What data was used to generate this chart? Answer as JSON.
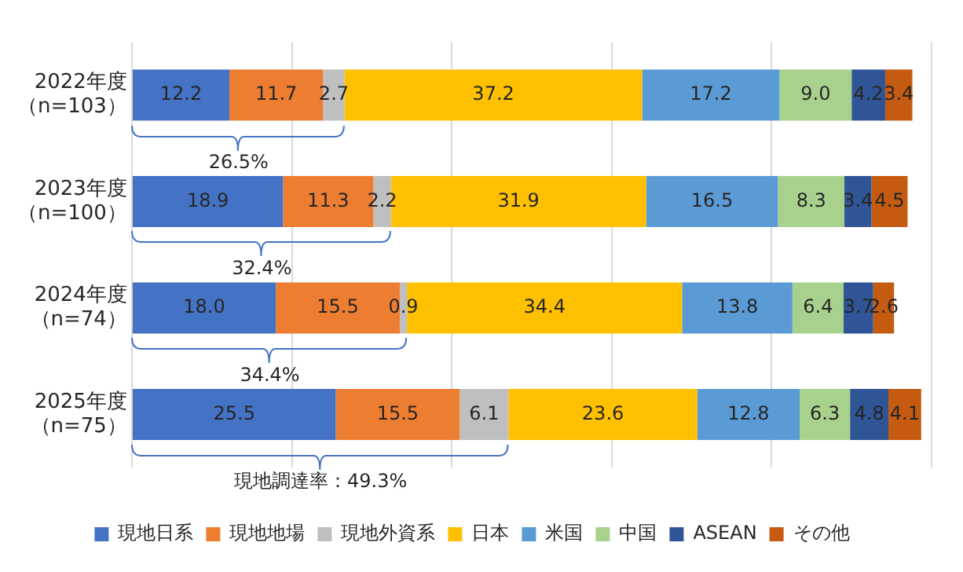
{
  "chart_data": {
    "type": "bar",
    "orientation": "horizontal",
    "stacked": true,
    "categories": [
      "2022年度（n=103）",
      "2023年度（n=100）",
      "2024年度（n=74）",
      "2025年度（n=75）"
    ],
    "series": [
      {
        "name": "現地日系",
        "color": "#4472c4",
        "values": [
          12.2,
          18.9,
          18.0,
          25.5
        ],
        "value_labels": [
          "12.2",
          "18.9",
          "18.0",
          "25.5"
        ]
      },
      {
        "name": "現地地場",
        "color": "#ed7d31",
        "values": [
          11.7,
          11.3,
          15.5,
          15.5
        ],
        "value_labels": [
          "11.7",
          "11.3",
          "15.5",
          "15.5"
        ]
      },
      {
        "name": "現地外資系",
        "color": "#bfbfbf",
        "values": [
          2.7,
          2.2,
          0.9,
          6.1
        ],
        "value_labels": [
          "2.7",
          "2.2",
          "0.9",
          "6.1"
        ]
      },
      {
        "name": "日本",
        "color": "#ffc000",
        "values": [
          37.2,
          31.9,
          34.4,
          23.6
        ],
        "value_labels": [
          "37.2",
          "31.9",
          "34.4",
          "23.6"
        ]
      },
      {
        "name": "米国",
        "color": "#5b9bd5",
        "values": [
          17.2,
          16.5,
          13.8,
          12.8
        ],
        "value_labels": [
          "17.2",
          "16.5",
          "13.8",
          "12.8"
        ]
      },
      {
        "name": "中国",
        "color": "#a9d18e",
        "values": [
          9.0,
          8.3,
          6.4,
          6.3
        ],
        "value_labels": [
          "9.0",
          "8.3",
          "6.4",
          "6.3"
        ]
      },
      {
        "name": "ASEAN",
        "color": "#2f5597",
        "values": [
          4.2,
          3.4,
          3.7,
          4.8
        ],
        "value_labels": [
          "4.2",
          "3.4",
          "3.7",
          "4.8"
        ]
      },
      {
        "name": "その他",
        "color": "#c55a11",
        "values": [
          3.4,
          4.5,
          2.6,
          4.1
        ],
        "value_labels": [
          "3.4",
          "4.5",
          "2.6",
          "4.1"
        ]
      }
    ],
    "xlim": [
      0,
      100
    ],
    "xticks": [
      {
        "value": 0,
        "label": null
      },
      {
        "value": 20,
        "label": null
      },
      {
        "value": 40,
        "label": null
      },
      {
        "value": 60,
        "label": null
      },
      {
        "value": 80,
        "label": null
      },
      {
        "value": 100,
        "label": null
      }
    ],
    "tick_labels": "y",
    "grid": "x",
    "legend": "bottom",
    "annotations": [
      "26.5%",
      "32.4%",
      "34.4%",
      "現地調達率：49.3%"
    ]
  }
}
